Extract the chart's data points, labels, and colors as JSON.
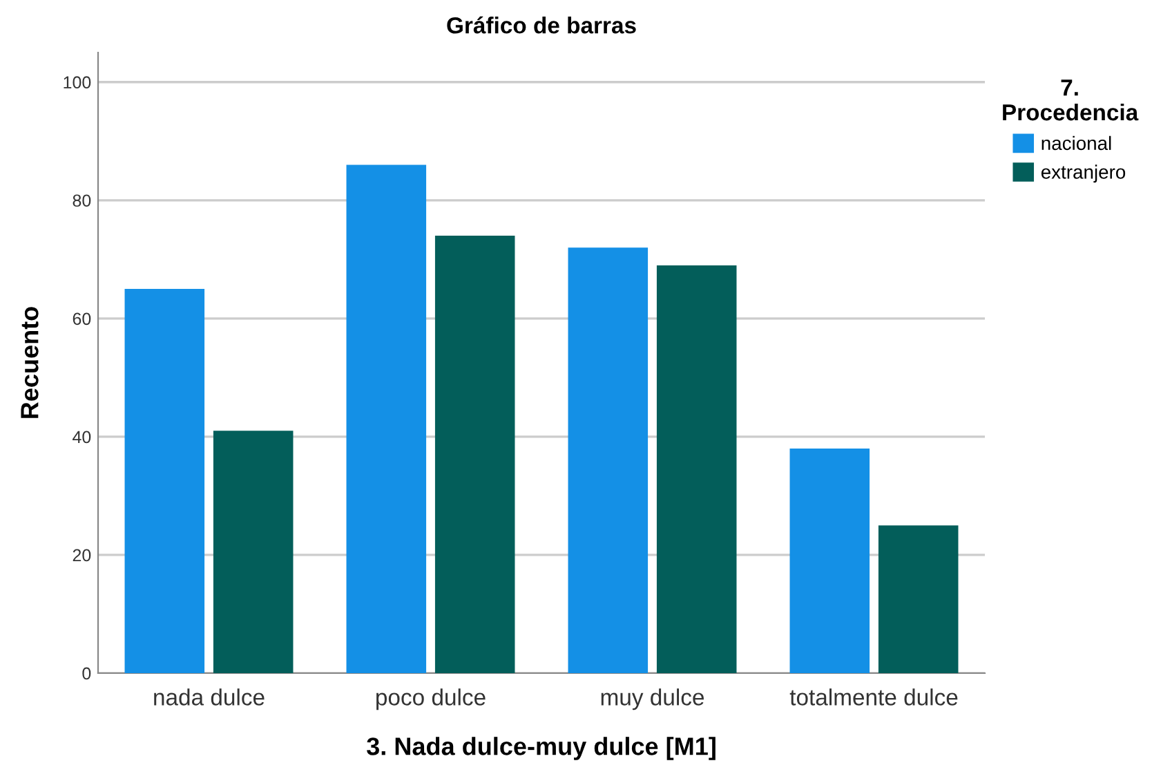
{
  "chart_data": {
    "type": "bar",
    "title": "Gráfico de barras",
    "xlabel": "3. Nada dulce-muy dulce [M1]",
    "ylabel": "Recuento",
    "legend_title": "7.\nProcedencia",
    "categories": [
      "nada dulce",
      "poco dulce",
      "muy dulce",
      "totalmente dulce"
    ],
    "series": [
      {
        "name": "nacional",
        "color": "#1490e6",
        "values": [
          65,
          86,
          72,
          38
        ]
      },
      {
        "name": "extranjero",
        "color": "#035e5a",
        "values": [
          41,
          74,
          69,
          25
        ]
      }
    ],
    "ylim": [
      0,
      105
    ],
    "yticks": [
      0,
      20,
      40,
      60,
      80,
      100
    ],
    "grid": "y",
    "legend": "top right"
  }
}
